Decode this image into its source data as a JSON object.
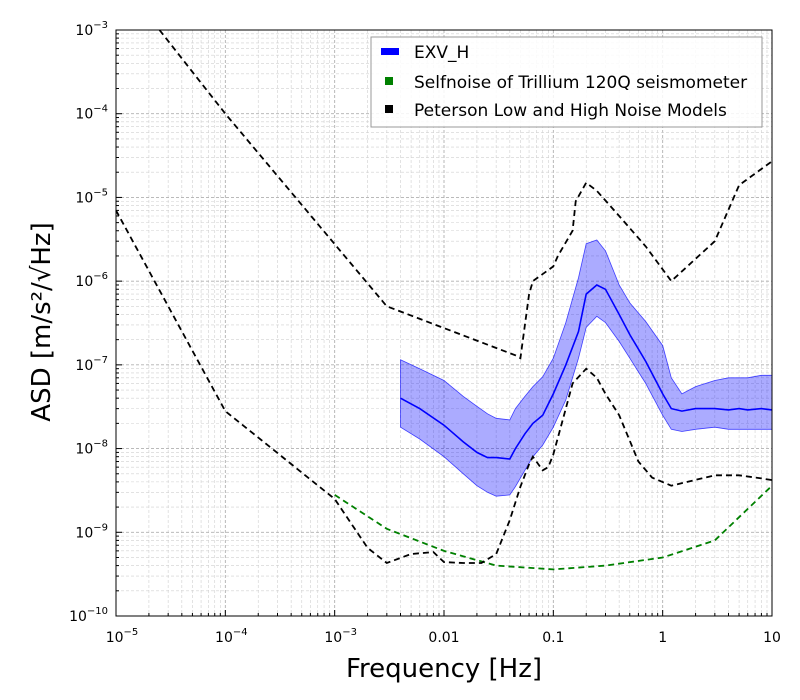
{
  "chart_data": {
    "type": "line",
    "title": "",
    "xlabel": "Frequency [Hz]",
    "ylabel": "ASD [m/s²/√Hz]",
    "xscale": "log",
    "yscale": "log",
    "xlim": [
      1e-05,
      10
    ],
    "ylim": [
      1e-10,
      0.001
    ],
    "grid": true,
    "legend_position": "top-right",
    "x_ticks": [
      {
        "value": 1e-05,
        "base": "10",
        "exp": "−5"
      },
      {
        "value": 0.0001,
        "base": "10",
        "exp": "−4"
      },
      {
        "value": 0.001,
        "base": "10",
        "exp": "−3"
      },
      {
        "value": 0.01,
        "base": "0.01",
        "exp": ""
      },
      {
        "value": 0.1,
        "base": "0.1",
        "exp": ""
      },
      {
        "value": 1,
        "base": "1",
        "exp": ""
      },
      {
        "value": 10,
        "base": "10",
        "exp": ""
      }
    ],
    "y_ticks": [
      {
        "value": 1e-10,
        "base": "10",
        "exp": "−10"
      },
      {
        "value": 1e-09,
        "base": "10",
        "exp": "−9"
      },
      {
        "value": 1e-08,
        "base": "10",
        "exp": "−8"
      },
      {
        "value": 1e-07,
        "base": "10",
        "exp": "−7"
      },
      {
        "value": 1e-06,
        "base": "10",
        "exp": "−6"
      },
      {
        "value": 1e-05,
        "base": "10",
        "exp": "−5"
      },
      {
        "value": 0.0001,
        "base": "10",
        "exp": "−4"
      },
      {
        "value": 0.001,
        "base": "10",
        "exp": "−3"
      }
    ],
    "legend": [
      {
        "label": "EXV_H",
        "color": "#0000ff",
        "marker": "bar"
      },
      {
        "label": "Selfnoise of Trillium 120Q seismometer",
        "color": "#008000",
        "marker": "square"
      },
      {
        "label": "Peterson Low and High Noise Models",
        "color": "#000000",
        "marker": "square"
      }
    ],
    "series": [
      {
        "name": "EXV_H",
        "color": "#0000ff",
        "style": "solid",
        "x": [
          0.004,
          0.006,
          0.01,
          0.015,
          0.02,
          0.025,
          0.03,
          0.04,
          0.045,
          0.055,
          0.065,
          0.08,
          0.1,
          0.13,
          0.17,
          0.2,
          0.25,
          0.3,
          0.4,
          0.5,
          0.7,
          1.0,
          1.2,
          1.5,
          2,
          3,
          4,
          5,
          6,
          8,
          10
        ],
        "values": [
          4e-08,
          3e-08,
          1.9e-08,
          1.2e-08,
          9e-09,
          7.8e-09,
          7.8e-09,
          7.5e-09,
          1e-08,
          1.5e-08,
          2e-08,
          2.5e-08,
          4.5e-08,
          1e-07,
          2.5e-07,
          7e-07,
          9e-07,
          8e-07,
          4e-07,
          2.3e-07,
          1.1e-07,
          4.5e-08,
          3e-08,
          2.8e-08,
          3e-08,
          3e-08,
          2.9e-08,
          3e-08,
          2.9e-08,
          3e-08,
          2.9e-08
        ],
        "band_upper": [
          1.15e-07,
          9e-08,
          6.5e-08,
          4.2e-08,
          3.2e-08,
          2.6e-08,
          2.3e-08,
          2.2e-08,
          3e-08,
          4.2e-08,
          5.5e-08,
          7.2e-08,
          1.2e-07,
          3.2e-07,
          1.1e-06,
          2.8e-06,
          3.1e-06,
          2.3e-06,
          9e-07,
          5.5e-07,
          3.3e-07,
          1.7e-07,
          7e-08,
          4.5e-08,
          5.5e-08,
          6.5e-08,
          7e-08,
          7e-08,
          7e-08,
          7.5e-08,
          7.5e-08
        ],
        "band_lower": [
          1.8e-08,
          1.3e-08,
          8e-09,
          5e-09,
          3.6e-09,
          3e-09,
          2.7e-09,
          2.8e-09,
          3.5e-09,
          5.5e-09,
          8e-09,
          1.1e-08,
          1.8e-08,
          3.8e-08,
          1.2e-07,
          2.8e-07,
          3.8e-07,
          3.2e-07,
          1.9e-07,
          1.2e-07,
          6e-08,
          2.5e-08,
          1.7e-08,
          1.6e-08,
          1.7e-08,
          1.8e-08,
          1.7e-08,
          1.7e-08,
          1.7e-08,
          1.7e-08,
          1.7e-08
        ]
      },
      {
        "name": "Selfnoise of Trillium 120Q seismometer",
        "color": "#008000",
        "style": "dashed",
        "x": [
          0.001,
          0.003,
          0.01,
          0.03,
          0.1,
          0.3,
          1,
          3,
          10
        ],
        "values": [
          2.8e-09,
          1.1e-09,
          6e-10,
          4e-10,
          3.6e-10,
          4e-10,
          5e-10,
          8e-10,
          3.6e-09
        ]
      },
      {
        "name": "Peterson Low Noise Model",
        "color": "#000000",
        "style": "dashed",
        "x": [
          1e-05,
          0.0001,
          0.001,
          0.002,
          0.003,
          0.005,
          0.008,
          0.01,
          0.015,
          0.022,
          0.03,
          0.04,
          0.05,
          0.06,
          0.065,
          0.08,
          0.09,
          0.1,
          0.13,
          0.15,
          0.2,
          0.25,
          0.3,
          0.4,
          0.6,
          0.8,
          1.2,
          3,
          5,
          8,
          10
        ],
        "values": [
          7e-06,
          2.8e-08,
          2.5e-09,
          6.5e-10,
          4.3e-10,
          5.5e-10,
          5.8e-10,
          4.4e-10,
          4.3e-10,
          4.3e-10,
          5.5e-10,
          1.4e-09,
          3.5e-09,
          6.5e-09,
          8e-09,
          5.5e-09,
          6e-09,
          8.5e-09,
          3e-08,
          6e-08,
          9e-08,
          7e-08,
          4.5e-08,
          2.5e-08,
          7e-09,
          4.5e-09,
          3.6e-09,
          4.8e-09,
          4.8e-09,
          4.4e-09,
          4.2e-09
        ]
      },
      {
        "name": "Peterson High Noise Model",
        "color": "#000000",
        "style": "dashed",
        "x": [
          2.5e-05,
          0.0001,
          0.003,
          0.045,
          0.05,
          0.06,
          0.065,
          0.1,
          0.11,
          0.15,
          0.16,
          0.2,
          0.25,
          0.4,
          0.7,
          1.2,
          3,
          5,
          10
        ],
        "values": [
          0.001,
          0.0001,
          5e-07,
          1.3e-07,
          1.2e-07,
          7e-07,
          1e-06,
          1.5e-06,
          2e-06,
          4e-06,
          9e-06,
          1.5e-05,
          1.2e-05,
          6e-06,
          2.6e-06,
          1e-06,
          3e-06,
          1.4e-05,
          2.7e-05
        ]
      }
    ]
  }
}
